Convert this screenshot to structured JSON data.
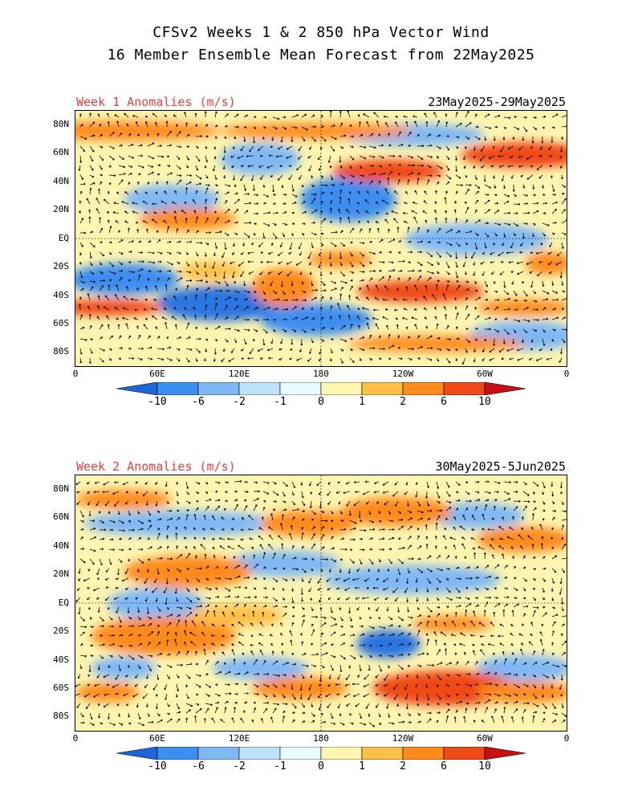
{
  "title": {
    "line1": "CFSv2 Weeks 1 & 2 850 hPa Vector Wind",
    "line2": "16 Member Ensemble Mean Forecast from 22May2025"
  },
  "panels": [
    {
      "label": "Week 1 Anomalies (m/s)",
      "dates": "23May2025-29May2025"
    },
    {
      "label": "Week 2 Anomalies (m/s)",
      "dates": "30May2025-5Jun2025"
    }
  ],
  "lat_labels": [
    "80N",
    "60N",
    "40N",
    "20N",
    "EQ",
    "20S",
    "40S",
    "60S",
    "80S"
  ],
  "lon_labels": [
    "0",
    "60E",
    "120E",
    "180",
    "120W",
    "60W",
    "0"
  ],
  "colorbar": {
    "ticks": [
      "-10",
      "-6",
      "-2",
      "-1",
      "0",
      "1",
      "2",
      "6",
      "10"
    ],
    "colors": [
      "#1e66d8",
      "#3c8ef0",
      "#7fb8f5",
      "#bfe2fb",
      "#e8fbff",
      "#fff5b0",
      "#ffc04a",
      "#ff8a1e",
      "#f04818",
      "#c81010"
    ]
  }
}
